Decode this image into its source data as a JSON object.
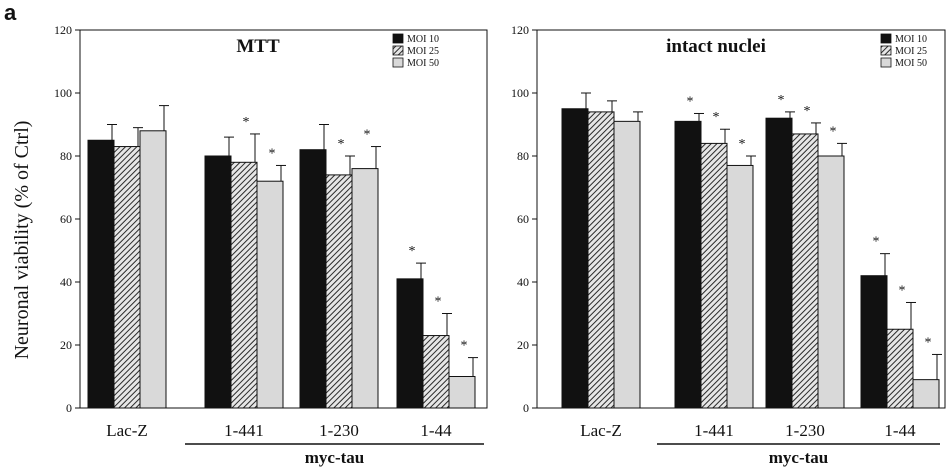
{
  "figure": {
    "panel_letter": "a",
    "ylabel": "Neuronal viability (% of Ctrl)",
    "group_label": "myc-tau"
  },
  "colors": {
    "MOI 10": "#111111",
    "MOI 25": "hatch",
    "MOI 50": "#d9d9d9"
  },
  "chart_data": [
    {
      "type": "bar",
      "title": "MTT",
      "categories": [
        "Lac-Z",
        "1-441",
        "1-230",
        "1-44"
      ],
      "ylim": [
        0,
        120
      ],
      "yticks": [
        0,
        20,
        40,
        60,
        80,
        100,
        120
      ],
      "legend": {
        "placement": "top-right",
        "entries": [
          "MOI 10",
          "MOI 25",
          "MOI 50"
        ]
      },
      "series": [
        {
          "name": "MOI 10",
          "values": [
            85,
            80,
            82,
            41
          ],
          "errors": [
            5,
            6,
            8,
            5
          ],
          "significant": [
            false,
            false,
            false,
            true
          ]
        },
        {
          "name": "MOI 25",
          "values": [
            83,
            78,
            74,
            23
          ],
          "errors": [
            6,
            9,
            6,
            7
          ],
          "significant": [
            false,
            true,
            true,
            true
          ]
        },
        {
          "name": "MOI 50",
          "values": [
            88,
            72,
            76,
            10
          ],
          "errors": [
            8,
            5,
            7,
            6
          ],
          "significant": [
            false,
            true,
            true,
            true
          ]
        }
      ],
      "star": "*",
      "grid": false
    },
    {
      "type": "bar",
      "title": "intact nuclei",
      "categories": [
        "Lac-Z",
        "1-441",
        "1-230",
        "1-44"
      ],
      "ylim": [
        0,
        120
      ],
      "yticks": [
        0,
        20,
        40,
        60,
        80,
        100,
        120
      ],
      "legend": {
        "placement": "top-right",
        "entries": [
          "MOI 10",
          "MOI 25",
          "MOI 50"
        ]
      },
      "series": [
        {
          "name": "MOI 10",
          "values": [
            95,
            91,
            92,
            42
          ],
          "errors": [
            5,
            2.5,
            2,
            7
          ],
          "significant": [
            false,
            true,
            true,
            true
          ]
        },
        {
          "name": "MOI 25",
          "values": [
            94,
            84,
            87,
            25
          ],
          "errors": [
            3.5,
            4.5,
            3.5,
            8.5
          ],
          "significant": [
            false,
            true,
            true,
            true
          ]
        },
        {
          "name": "MOI 50",
          "values": [
            91,
            77,
            80,
            9
          ],
          "errors": [
            3,
            3,
            4,
            8
          ],
          "significant": [
            false,
            true,
            true,
            true
          ]
        }
      ],
      "star": "*",
      "grid": false
    }
  ]
}
